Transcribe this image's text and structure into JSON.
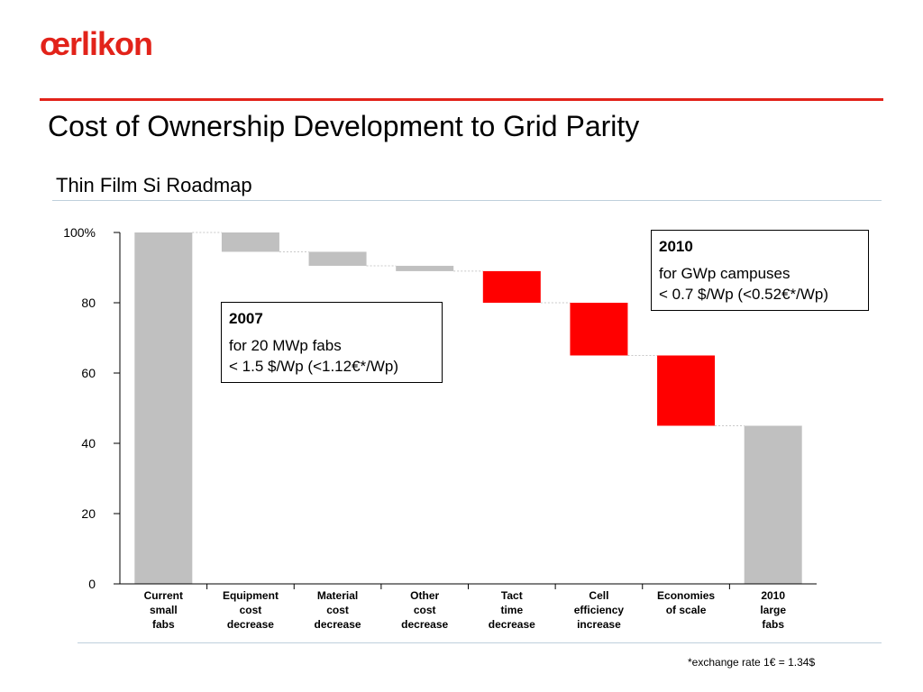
{
  "brand": {
    "logo_text": "œrlikon",
    "accent_color": "#e2231a"
  },
  "slide": {
    "title": "Cost of Ownership Development to Grid Parity",
    "subtitle": "Thin Film Si Roadmap",
    "footnote": "*exchange rate 1€ = 1.34$"
  },
  "callouts": {
    "y2010": {
      "year": "2010",
      "line1": "for GWp campuses",
      "line2": "< 0.7 $/Wp (<0.52€*/Wp)"
    },
    "y2007": {
      "year": "2007",
      "line1": "for 20 MWp fabs",
      "line2": "< 1.5 $/Wp (<1.12€*/Wp)"
    }
  },
  "chart_data": {
    "type": "bar",
    "subtype": "waterfall",
    "ylim": [
      0,
      100
    ],
    "yticks": [
      0,
      20,
      40,
      60,
      80,
      100
    ],
    "ytick_labels": [
      "0",
      "20",
      "40",
      "60",
      "80",
      "100%"
    ],
    "categories": [
      [
        "Current",
        "small",
        "fabs"
      ],
      [
        "Equipment",
        "cost",
        "decrease"
      ],
      [
        "Material",
        "cost",
        "decrease"
      ],
      [
        "Other",
        "cost",
        "decrease"
      ],
      [
        "Tact",
        "time",
        "decrease"
      ],
      [
        "Cell",
        "efficiency",
        "increase"
      ],
      [
        "Economies",
        "of scale"
      ],
      [
        "2010",
        "large",
        "fabs"
      ]
    ],
    "bars": [
      {
        "kind": "total",
        "start": 0,
        "end": 100
      },
      {
        "kind": "step",
        "start": 100,
        "end": 94.5
      },
      {
        "kind": "step",
        "start": 94.5,
        "end": 90.5
      },
      {
        "kind": "step",
        "start": 90.5,
        "end": 89
      },
      {
        "kind": "step",
        "start": 89,
        "end": 80
      },
      {
        "kind": "step",
        "start": 80,
        "end": 65
      },
      {
        "kind": "step",
        "start": 65,
        "end": 45
      },
      {
        "kind": "total",
        "start": 0,
        "end": 45
      }
    ],
    "bar_colors": [
      "#c0c0c0",
      "#c0c0c0",
      "#c0c0c0",
      "#c0c0c0",
      "#ff0000",
      "#ff0000",
      "#ff0000",
      "#c0c0c0"
    ],
    "connector_color": "#c8c8c8"
  }
}
